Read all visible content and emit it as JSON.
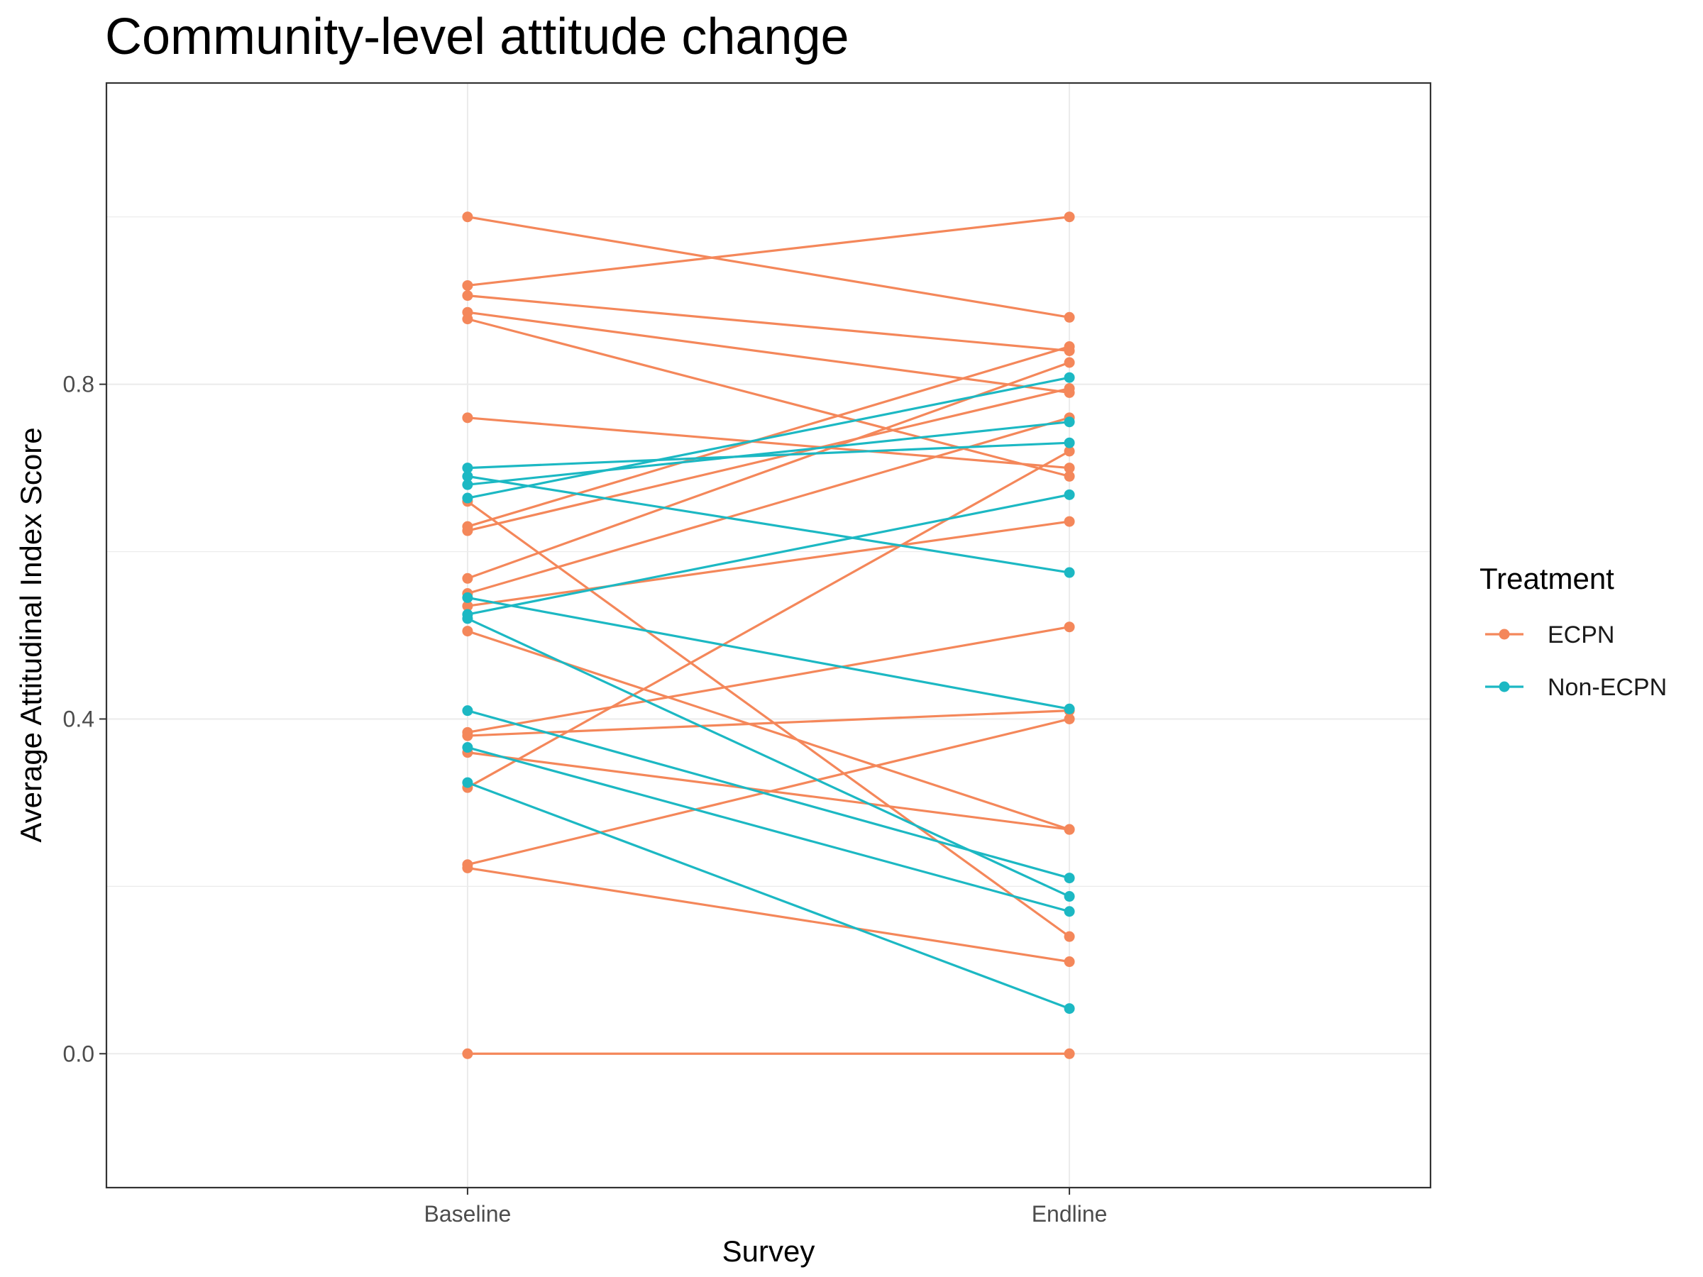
{
  "chart_data": {
    "type": "line",
    "title": "Community-level attitude change",
    "xlabel": "Survey",
    "ylabel": "Average Attitudinal Index Score",
    "categories": [
      "Baseline",
      "Endline"
    ],
    "ylim": [
      -0.16,
      1.16
    ],
    "yticks": [
      0.0,
      0.4,
      0.8
    ],
    "y_gridlines": [
      0.0,
      0.2,
      0.4,
      0.6,
      0.8,
      1.0
    ],
    "grid": true,
    "legend": {
      "title": "Treatment",
      "placement": "right",
      "entries": [
        "ECPN",
        "Non-ECPN"
      ]
    },
    "colors": {
      "ECPN": "#F4875A",
      "Non-ECPN": "#1CB8C3"
    },
    "series": [
      {
        "group": "ECPN",
        "values": [
          1.0,
          0.88
        ]
      },
      {
        "group": "ECPN",
        "values": [
          0.918,
          1.0
        ]
      },
      {
        "group": "ECPN",
        "values": [
          0.906,
          0.84
        ]
      },
      {
        "group": "ECPN",
        "values": [
          0.886,
          0.79
        ]
      },
      {
        "group": "ECPN",
        "values": [
          0.878,
          0.69
        ]
      },
      {
        "group": "ECPN",
        "values": [
          0.76,
          0.7
        ]
      },
      {
        "group": "ECPN",
        "values": [
          0.63,
          0.845
        ]
      },
      {
        "group": "ECPN",
        "values": [
          0.625,
          0.795
        ]
      },
      {
        "group": "ECPN",
        "values": [
          0.568,
          0.826
        ]
      },
      {
        "group": "ECPN",
        "values": [
          0.55,
          0.76
        ]
      },
      {
        "group": "ECPN",
        "values": [
          0.535,
          0.636
        ]
      },
      {
        "group": "ECPN",
        "values": [
          0.66,
          0.14
        ]
      },
      {
        "group": "ECPN",
        "values": [
          0.505,
          0.268
        ]
      },
      {
        "group": "ECPN",
        "values": [
          0.384,
          0.51
        ]
      },
      {
        "group": "ECPN",
        "values": [
          0.38,
          0.41
        ]
      },
      {
        "group": "ECPN",
        "values": [
          0.36,
          0.268
        ]
      },
      {
        "group": "ECPN",
        "values": [
          0.318,
          0.72
        ]
      },
      {
        "group": "ECPN",
        "values": [
          0.226,
          0.4
        ]
      },
      {
        "group": "ECPN",
        "values": [
          0.222,
          0.11
        ]
      },
      {
        "group": "ECPN",
        "values": [
          0.0,
          0.0
        ]
      },
      {
        "group": "Non-ECPN",
        "values": [
          0.7,
          0.73
        ]
      },
      {
        "group": "Non-ECPN",
        "values": [
          0.69,
          0.575
        ]
      },
      {
        "group": "Non-ECPN",
        "values": [
          0.68,
          0.755
        ]
      },
      {
        "group": "Non-ECPN",
        "values": [
          0.664,
          0.808
        ]
      },
      {
        "group": "Non-ECPN",
        "values": [
          0.545,
          0.412
        ]
      },
      {
        "group": "Non-ECPN",
        "values": [
          0.525,
          0.668
        ]
      },
      {
        "group": "Non-ECPN",
        "values": [
          0.52,
          0.188
        ]
      },
      {
        "group": "Non-ECPN",
        "values": [
          0.41,
          0.21
        ]
      },
      {
        "group": "Non-ECPN",
        "values": [
          0.366,
          0.17
        ]
      },
      {
        "group": "Non-ECPN",
        "values": [
          0.324,
          0.054
        ]
      }
    ]
  }
}
